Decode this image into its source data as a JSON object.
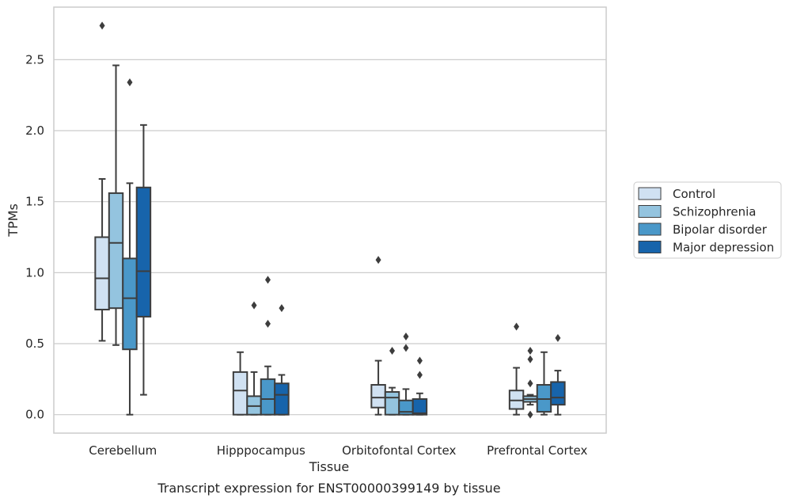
{
  "chart_data": {
    "type": "box",
    "title": "",
    "caption": "Transcript expression for ENST00000399149 by tissue",
    "xlabel": "Tissue",
    "ylabel": "TPMs",
    "ylim": [
      -0.13,
      2.87
    ],
    "yticks": [
      0.0,
      0.5,
      1.0,
      1.5,
      2.0,
      2.5
    ],
    "ytick_labels": [
      "0.0",
      "0.5",
      "1.0",
      "1.5",
      "2.0",
      "2.5"
    ],
    "grid": "horizontal",
    "legend_position": "right",
    "categories": [
      "Cerebellum",
      "Hipppocampus",
      "Orbitofontal Cortex",
      "Prefrontal Cortex"
    ],
    "series": [
      {
        "name": "Control",
        "color": "#d0e1f2",
        "boxes": [
          {
            "whislo": 0.52,
            "q1": 0.74,
            "med": 0.96,
            "q3": 1.25,
            "whishi": 1.66,
            "fliers": [
              2.74
            ]
          },
          {
            "whislo": 0.0,
            "q1": 0.0,
            "med": 0.17,
            "q3": 0.3,
            "whishi": 0.44,
            "fliers": []
          },
          {
            "whislo": 0.0,
            "q1": 0.05,
            "med": 0.12,
            "q3": 0.21,
            "whishi": 0.38,
            "fliers": [
              1.09
            ]
          },
          {
            "whislo": 0.0,
            "q1": 0.04,
            "med": 0.1,
            "q3": 0.17,
            "whishi": 0.33,
            "fliers": [
              0.62
            ]
          }
        ]
      },
      {
        "name": "Schizophrenia",
        "color": "#94c4df",
        "boxes": [
          {
            "whislo": 0.49,
            "q1": 0.75,
            "med": 1.21,
            "q3": 1.56,
            "whishi": 2.46,
            "fliers": []
          },
          {
            "whislo": 0.0,
            "q1": 0.0,
            "med": 0.06,
            "q3": 0.13,
            "whishi": 0.3,
            "fliers": [
              0.77
            ]
          },
          {
            "whislo": 0.0,
            "q1": 0.0,
            "med": 0.12,
            "q3": 0.16,
            "whishi": 0.19,
            "fliers": [
              0.45
            ]
          },
          {
            "whislo": 0.07,
            "q1": 0.09,
            "med": 0.11,
            "q3": 0.13,
            "whishi": 0.14,
            "fliers": [
              0.45,
              0.39,
              0.22,
              0.0
            ]
          }
        ]
      },
      {
        "name": "Bipolar disorder",
        "color": "#4a98c9",
        "boxes": [
          {
            "whislo": 0.0,
            "q1": 0.46,
            "med": 0.82,
            "q3": 1.1,
            "whishi": 1.63,
            "fliers": [
              2.34
            ]
          },
          {
            "whislo": 0.0,
            "q1": 0.0,
            "med": 0.11,
            "q3": 0.25,
            "whishi": 0.34,
            "fliers": [
              0.95,
              0.64
            ]
          },
          {
            "whislo": 0.0,
            "q1": 0.0,
            "med": 0.02,
            "q3": 0.1,
            "whishi": 0.18,
            "fliers": [
              0.55,
              0.47
            ]
          },
          {
            "whislo": 0.0,
            "q1": 0.02,
            "med": 0.11,
            "q3": 0.21,
            "whishi": 0.44,
            "fliers": []
          }
        ]
      },
      {
        "name": "Major depression",
        "color": "#1764ab",
        "boxes": [
          {
            "whislo": 0.14,
            "q1": 0.69,
            "med": 1.01,
            "q3": 1.6,
            "whishi": 2.04,
            "fliers": []
          },
          {
            "whislo": 0.0,
            "q1": 0.0,
            "med": 0.14,
            "q3": 0.22,
            "whishi": 0.28,
            "fliers": [
              0.75
            ]
          },
          {
            "whislo": 0.0,
            "q1": 0.0,
            "med": 0.01,
            "q3": 0.11,
            "whishi": 0.15,
            "fliers": [
              0.38,
              0.28
            ]
          },
          {
            "whislo": 0.0,
            "q1": 0.07,
            "med": 0.12,
            "q3": 0.23,
            "whishi": 0.31,
            "fliers": [
              0.54
            ]
          }
        ]
      }
    ]
  }
}
